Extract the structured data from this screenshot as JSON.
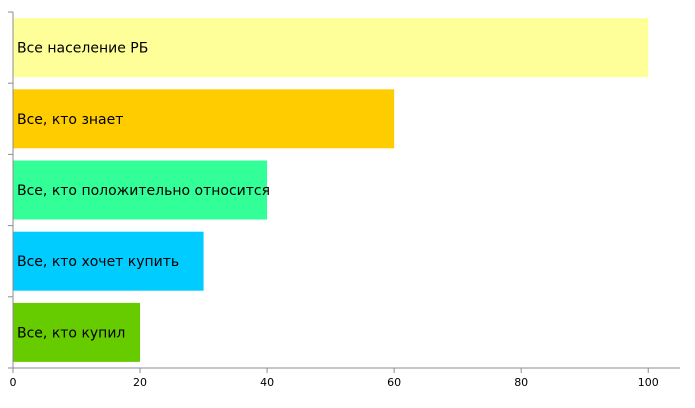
{
  "chart_data": {
    "type": "bar",
    "orientation": "horizontal",
    "title": "",
    "xlabel": "",
    "ylabel": "",
    "categories": [
      "Все население РБ",
      "Все, кто знает",
      "Все, кто положительно относится",
      "Все, кто хочет купить",
      "Все, кто купил"
    ],
    "values": [
      100,
      60,
      40,
      30,
      20
    ],
    "colors": [
      "#ffff99",
      "#ffcc00",
      "#33ff99",
      "#00ccff",
      "#66cc00"
    ],
    "xlim": [
      0,
      105
    ],
    "xticks": [
      0,
      20,
      40,
      60,
      80,
      100
    ],
    "grid": false,
    "legend": "none",
    "labels_inside_bars": true
  }
}
